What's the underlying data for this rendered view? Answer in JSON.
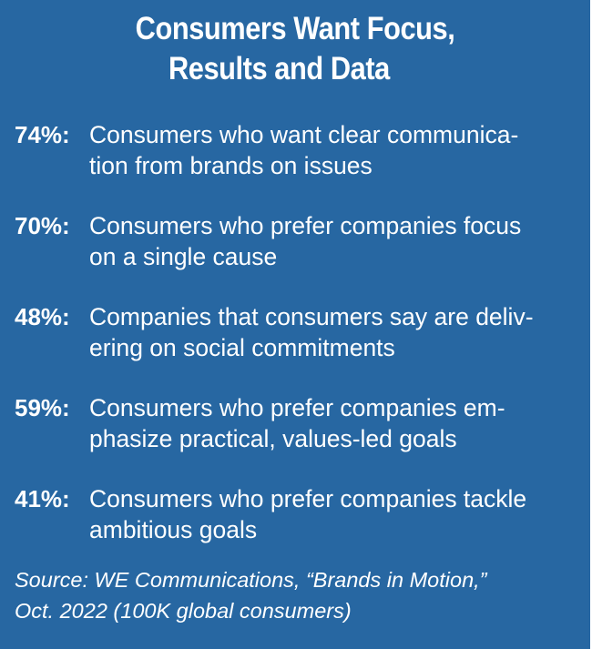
{
  "title": {
    "line1": "Consumers Want Focus,",
    "line2": "Results and Data"
  },
  "stats": [
    {
      "percent": "74%:",
      "line1": "Consumers who want clear communica-",
      "line2": "tion from brands on issues"
    },
    {
      "percent": "70%:",
      "line1": "Consumers who prefer companies focus",
      "line2": "on a single cause"
    },
    {
      "percent": "48%:",
      "line1": "Companies that consumers say are deliv-",
      "line2": "ering on social commitments"
    },
    {
      "percent": "59%:",
      "line1": "Consumers who prefer companies em-",
      "line2": "phasize practical, values-led goals"
    },
    {
      "percent": "41%:",
      "line1": "Consumers who prefer companies tackle",
      "line2": "ambitious goals"
    }
  ],
  "source": {
    "line1": "Source: WE Communications, “Brands in Motion,”",
    "line2": "Oct. 2022 (100K global consumers)"
  },
  "colors": {
    "background": "#2767a2",
    "text": "#ffffff"
  }
}
